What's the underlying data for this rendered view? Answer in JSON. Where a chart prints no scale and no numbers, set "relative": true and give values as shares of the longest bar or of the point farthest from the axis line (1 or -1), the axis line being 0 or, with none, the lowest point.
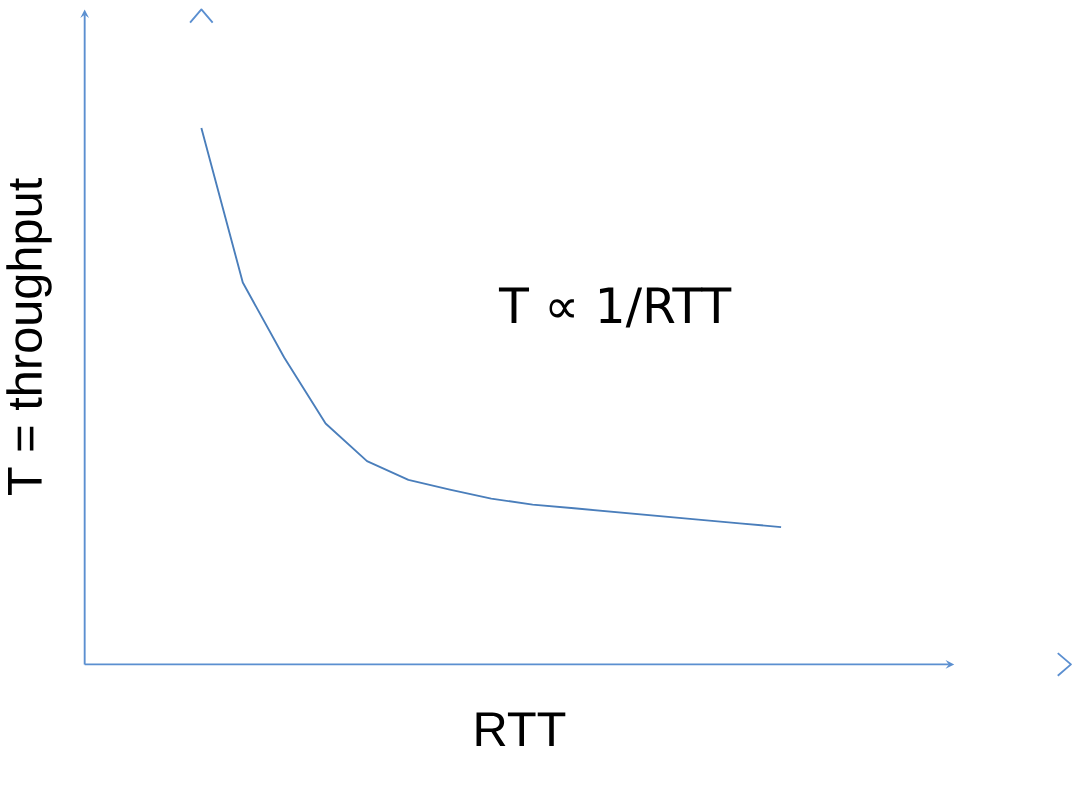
{
  "chart_data": {
    "type": "line",
    "relative": true,
    "xlabel": "RTT",
    "ylabel": "T = throughput",
    "color": "#4a7ebb",
    "categories": [
      null,
      null,
      null,
      null,
      null,
      null,
      null,
      null,
      null,
      null,
      null,
      null,
      null,
      null,
      null
    ],
    "values": [
      1,
      0.712,
      0.572,
      0.449,
      0.379,
      0.344,
      0.326,
      0.309,
      0.298,
      0.291,
      0.284,
      0.277,
      0.27,
      0.263,
      0.256
    ],
    "annotations": [
      "T ∝  1/RTT"
    ]
  }
}
